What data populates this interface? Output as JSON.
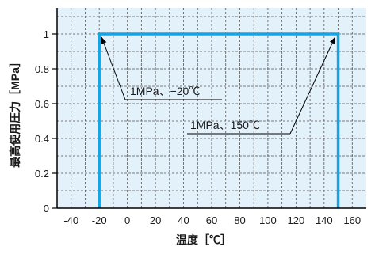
{
  "chart_data": {
    "type": "line",
    "title": "",
    "xlabel": "温度［℃］",
    "ylabel": "最高使用圧力［MPa］",
    "xlim": [
      -50,
      170
    ],
    "ylim": [
      0,
      1.15
    ],
    "x_ticks": [
      -40,
      -20,
      0,
      20,
      40,
      60,
      80,
      100,
      120,
      140,
      160
    ],
    "y_ticks": [
      0,
      0.2,
      0.4,
      0.6,
      0.8,
      1
    ],
    "x_tick_labels": [
      "-40",
      "-20",
      "0",
      "20",
      "40",
      "60",
      "80",
      "100",
      "120",
      "140",
      "160"
    ],
    "y_tick_labels": [
      "0",
      "0.2",
      "0.4",
      "0.6",
      "0.8",
      "1"
    ],
    "grid": true,
    "series": [
      {
        "x": [
          -20,
          -20,
          150,
          150
        ],
        "y": [
          0,
          1,
          1,
          0
        ]
      }
    ],
    "annotations": [
      {
        "text": "1MPa、−20℃",
        "x": -20,
        "y": 1
      },
      {
        "text": "1MPa、150℃",
        "x": 150,
        "y": 1
      }
    ],
    "colors": {
      "plot_background": "#e3f1fb",
      "grid": "#555555",
      "line": "#12a5e6",
      "axis": "#000000"
    }
  }
}
